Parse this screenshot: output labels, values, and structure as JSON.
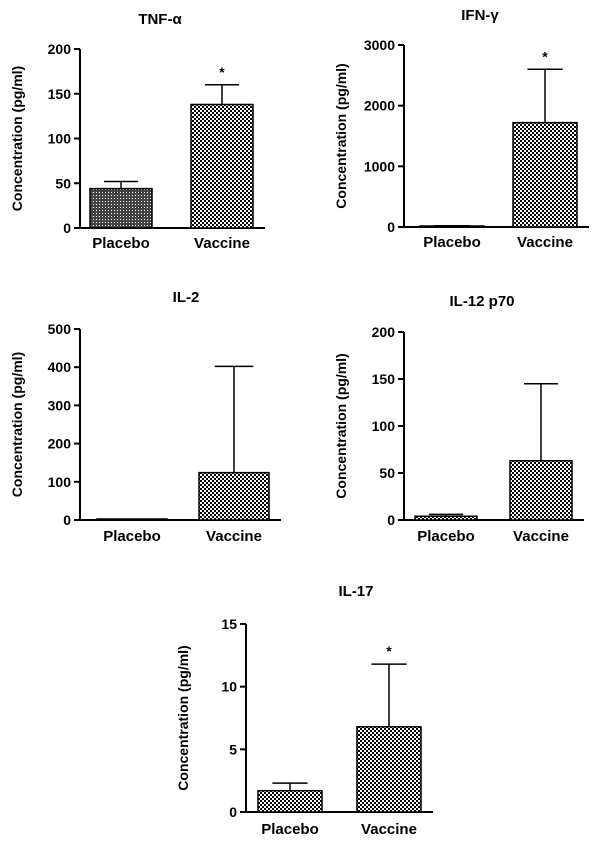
{
  "chart_data": [
    {
      "type": "bar",
      "title": "TNF-α",
      "ylabel": "Concentration (pg/ml)",
      "categories": [
        "Placebo",
        "Vaccine"
      ],
      "values": [
        44,
        138
      ],
      "errors": [
        8,
        22
      ],
      "significance": [
        "",
        "*"
      ],
      "ylim": [
        0,
        200
      ],
      "yticks": [
        0,
        50,
        100,
        150,
        200
      ]
    },
    {
      "type": "bar",
      "title": "IFN-γ",
      "ylabel": "Concentration (pg/ml)",
      "categories": [
        "Placebo",
        "Vaccine"
      ],
      "values": [
        15,
        1720
      ],
      "errors": [
        5,
        880
      ],
      "significance": [
        "",
        "*"
      ],
      "ylim": [
        0,
        3000
      ],
      "yticks": [
        0,
        1000,
        2000,
        3000
      ]
    },
    {
      "type": "bar",
      "title": "IL-2",
      "ylabel": "Concentration (pg/ml)",
      "categories": [
        "Placebo",
        "Vaccine"
      ],
      "values": [
        1,
        124
      ],
      "errors": [
        0,
        278
      ],
      "significance": [
        "",
        ""
      ],
      "ylim": [
        0,
        500
      ],
      "yticks": [
        0,
        100,
        200,
        300,
        400,
        500
      ]
    },
    {
      "type": "bar",
      "title": "IL-12 p70",
      "ylabel": "Concentration (pg/ml)",
      "categories": [
        "Placebo",
        "Vaccine"
      ],
      "values": [
        4,
        63
      ],
      "errors": [
        2,
        82
      ],
      "significance": [
        "",
        ""
      ],
      "ylim": [
        0,
        200
      ],
      "yticks": [
        0,
        50,
        100,
        150,
        200
      ]
    },
    {
      "type": "bar",
      "title": "IL-17",
      "ylabel": "Concentration (pg/ml)",
      "categories": [
        "Placebo",
        "Vaccine"
      ],
      "values": [
        1.7,
        6.8
      ],
      "errors": [
        0.6,
        5.0
      ],
      "significance": [
        "",
        "*"
      ],
      "ylim": [
        0,
        15
      ],
      "yticks": [
        0,
        5,
        10,
        15
      ]
    }
  ]
}
